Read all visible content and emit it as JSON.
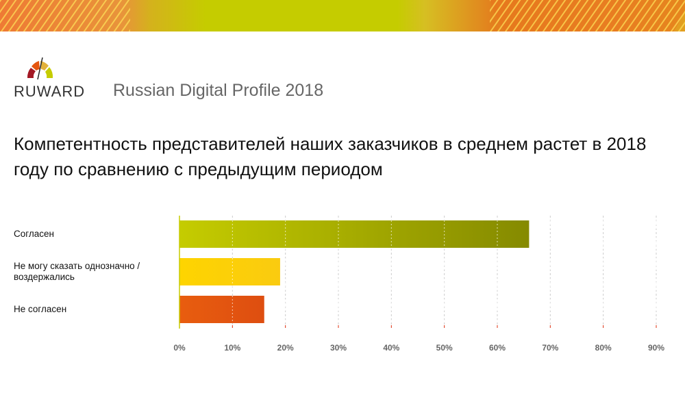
{
  "header": {
    "brand": "RUWARD",
    "subtitle": "Russian Digital Profile 2018"
  },
  "colors": {
    "bar_agree_start": "#c5cc00",
    "bar_agree_end": "#858a00",
    "bar_neutral": "#fdd000",
    "bar_disagree": "#e3520f"
  },
  "chart_data": {
    "type": "bar",
    "orientation": "horizontal",
    "title": "Компетентность представителей наших заказчиков в среднем растет в 2018 году по сравнению с предыдущим периодом",
    "categories": [
      "Согласен",
      "Не могу сказать однозначно / воздержались",
      "Не согласен"
    ],
    "values": [
      66,
      19,
      16
    ],
    "xlim": [
      0,
      90
    ],
    "xticks": [
      "0%",
      "10%",
      "20%",
      "30%",
      "40%",
      "50%",
      "60%",
      "70%",
      "80%",
      "90%"
    ],
    "grid": true
  }
}
